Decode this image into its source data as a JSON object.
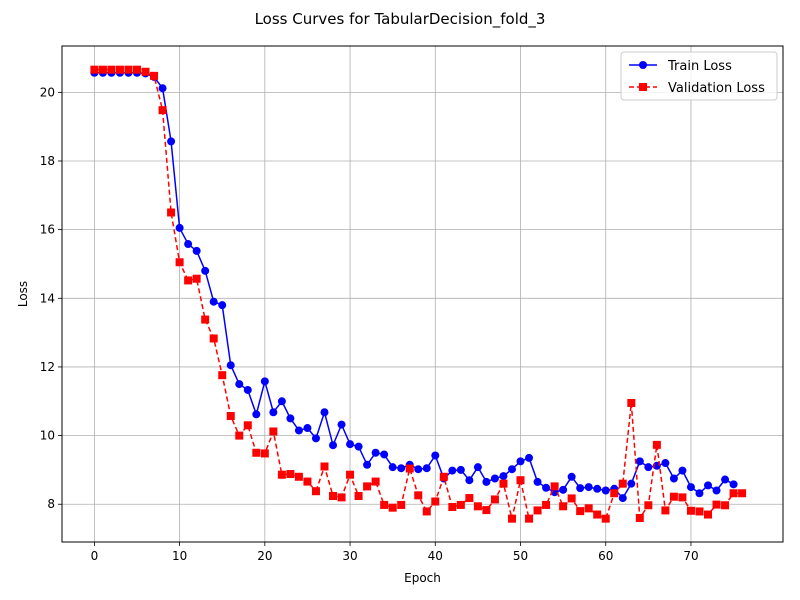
{
  "chart_data": {
    "type": "line",
    "title": "Loss Curves for TabularDecision_fold_3",
    "xlabel": "Epoch",
    "ylabel": "Loss",
    "xlim": [
      -3.8,
      80.8
    ],
    "ylim": [
      6.9,
      21.35
    ],
    "xticks": [
      0,
      10,
      20,
      30,
      40,
      50,
      60,
      70
    ],
    "yticks": [
      8,
      10,
      12,
      14,
      16,
      18,
      20
    ],
    "grid": true,
    "legend_position": "top-right",
    "series": [
      {
        "name": "Train Loss",
        "color": "#0000ff",
        "line_style": "solid",
        "marker": "circle",
        "x": [
          0,
          1,
          2,
          3,
          4,
          5,
          6,
          7,
          8,
          9,
          10,
          11,
          12,
          13,
          14,
          15,
          16,
          17,
          18,
          19,
          20,
          21,
          22,
          23,
          24,
          25,
          26,
          27,
          28,
          29,
          30,
          31,
          32,
          33,
          34,
          35,
          36,
          37,
          38,
          39,
          40,
          41,
          42,
          43,
          44,
          45,
          46,
          47,
          48,
          49,
          50,
          51,
          52,
          53,
          54,
          55,
          56,
          57,
          58,
          59,
          60,
          61,
          62,
          63,
          64,
          65,
          66,
          67,
          68,
          69,
          70,
          71,
          72,
          73,
          74,
          75
        ],
        "values": [
          20.57,
          20.57,
          20.57,
          20.57,
          20.57,
          20.57,
          20.55,
          20.45,
          20.12,
          18.57,
          16.05,
          15.58,
          15.38,
          14.8,
          13.9,
          13.8,
          12.05,
          11.5,
          11.33,
          10.62,
          11.58,
          10.68,
          11.0,
          10.5,
          10.15,
          10.22,
          9.92,
          10.68,
          9.72,
          10.32,
          9.75,
          9.68,
          9.15,
          9.5,
          9.45,
          9.08,
          9.05,
          9.15,
          9.02,
          9.05,
          9.42,
          8.75,
          8.98,
          9.0,
          8.7,
          9.08,
          8.65,
          8.75,
          8.82,
          9.02,
          9.25,
          9.35,
          8.65,
          8.48,
          8.35,
          8.42,
          8.8,
          8.47,
          8.5,
          8.45,
          8.4,
          8.45,
          8.18,
          8.6,
          9.25,
          9.08,
          9.12,
          9.2,
          8.75,
          8.98,
          8.5,
          8.32,
          8.55,
          8.4,
          8.72,
          8.58
        ]
      },
      {
        "name": "Validation Loss",
        "color": "#ff0000",
        "line_style": "dashed",
        "marker": "square",
        "x": [
          0,
          1,
          2,
          3,
          4,
          5,
          6,
          7,
          8,
          9,
          10,
          11,
          12,
          13,
          14,
          15,
          16,
          17,
          18,
          19,
          20,
          21,
          22,
          23,
          24,
          25,
          26,
          27,
          28,
          29,
          30,
          31,
          32,
          33,
          34,
          35,
          36,
          37,
          38,
          39,
          40,
          41,
          42,
          43,
          44,
          45,
          46,
          47,
          48,
          49,
          50,
          51,
          52,
          53,
          54,
          55,
          56,
          57,
          58,
          59,
          60,
          61,
          62,
          63,
          64,
          65,
          66,
          67,
          68,
          69,
          70,
          71,
          72,
          73,
          74,
          75,
          76
        ],
        "values": [
          20.66,
          20.66,
          20.66,
          20.66,
          20.66,
          20.66,
          20.6,
          20.48,
          19.48,
          16.5,
          15.05,
          14.52,
          14.57,
          13.38,
          12.83,
          11.76,
          10.57,
          10.0,
          10.3,
          9.5,
          9.48,
          10.12,
          8.86,
          8.88,
          8.8,
          8.66,
          8.38,
          9.1,
          8.24,
          8.2,
          8.86,
          8.24,
          8.52,
          8.66,
          7.98,
          7.9,
          7.98,
          9.04,
          8.26,
          7.79,
          8.08,
          8.8,
          7.92,
          7.98,
          8.18,
          7.94,
          7.83,
          8.14,
          8.6,
          7.58,
          8.7,
          7.58,
          7.82,
          7.98,
          8.52,
          7.94,
          8.17,
          7.8,
          7.88,
          7.7,
          7.58,
          8.32,
          8.6,
          10.95,
          7.6,
          7.97,
          9.73,
          7.82,
          8.22,
          8.2,
          7.81,
          7.79,
          7.7,
          7.99,
          7.97,
          8.32,
          8.32
        ]
      }
    ]
  }
}
